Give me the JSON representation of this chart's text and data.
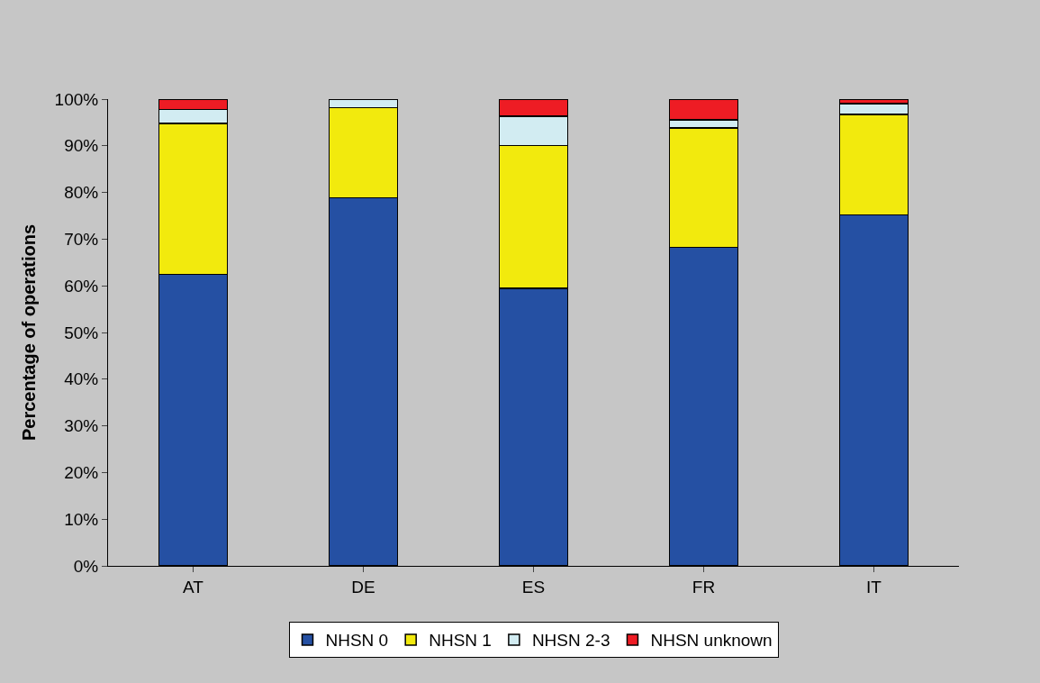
{
  "chart_data": {
    "type": "bar",
    "stacked": true,
    "ylabel": "Percentage of operations",
    "categories": [
      "AT",
      "DE",
      "ES",
      "FR",
      "IT"
    ],
    "series": [
      {
        "name": "NHSN 0",
        "color": "#2550a3",
        "values": [
          62.5,
          78.9,
          59.5,
          68.2,
          75.2
        ]
      },
      {
        "name": "NHSN 1",
        "color": "#f2ea0d",
        "values": [
          32.3,
          19.3,
          30.6,
          25.6,
          21.5
        ]
      },
      {
        "name": "NHSN 2-3",
        "color": "#d2ecf2",
        "values": [
          3.0,
          1.8,
          6.2,
          1.8,
          2.3
        ]
      },
      {
        "name": "NHSN unknown",
        "color": "#ee1c24",
        "values": [
          2.2,
          null,
          3.7,
          4.4,
          1.0
        ]
      }
    ],
    "ylim": [
      0,
      100
    ],
    "yticks": [
      {
        "value": 0,
        "label": "0%"
      },
      {
        "value": 10,
        "label": "10%"
      },
      {
        "value": 20,
        "label": "20%"
      },
      {
        "value": 30,
        "label": "30%"
      },
      {
        "value": 40,
        "label": "40%"
      },
      {
        "value": 50,
        "label": "50%"
      },
      {
        "value": 60,
        "label": "60%"
      },
      {
        "value": 70,
        "label": "70%"
      },
      {
        "value": 80,
        "label": "80%"
      },
      {
        "value": 90,
        "label": "90%"
      },
      {
        "value": 100,
        "label": "100%"
      }
    ],
    "grid": false,
    "legend": "bottom"
  }
}
